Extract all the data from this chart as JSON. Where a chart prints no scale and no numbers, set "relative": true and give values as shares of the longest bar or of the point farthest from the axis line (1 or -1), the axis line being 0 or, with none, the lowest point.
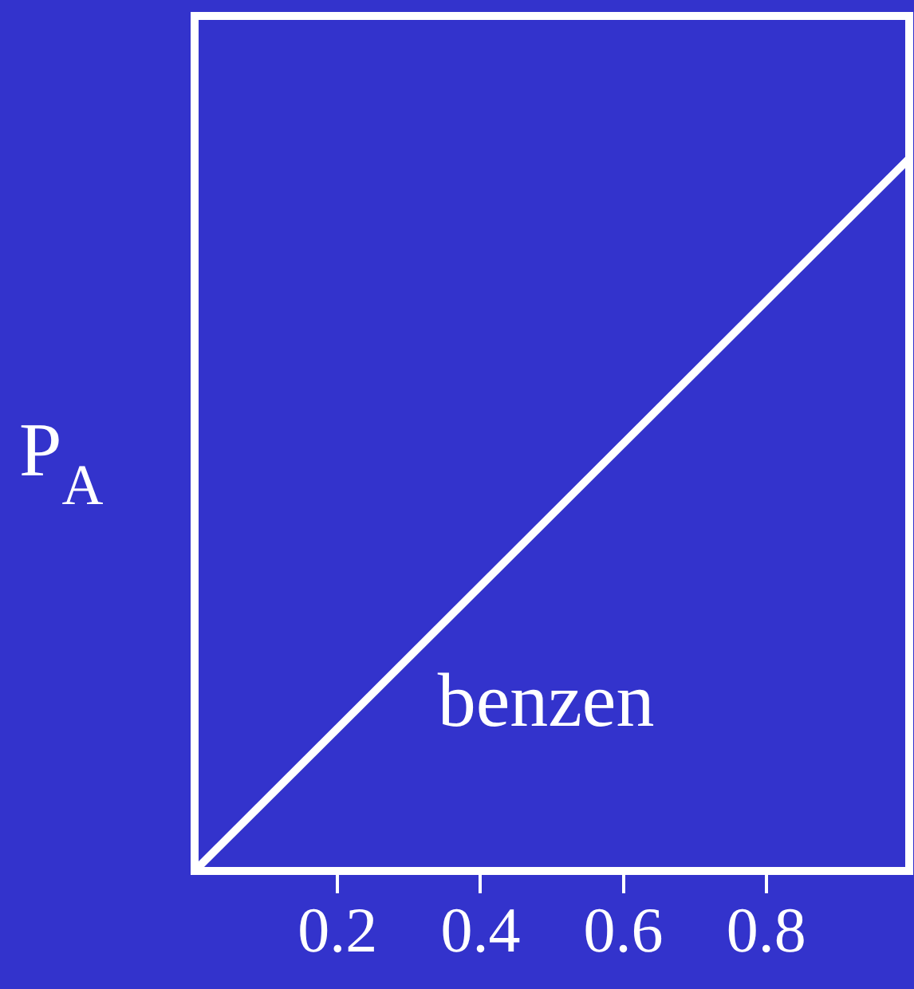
{
  "chart_data": {
    "type": "line",
    "relative": true,
    "ylabel": "P$_{A}$",
    "x": [
      0,
      1
    ],
    "series": [
      {
        "color": "#ffffff",
        "values": [
          0,
          1
        ]
      }
    ],
    "xlim": [
      0,
      1
    ],
    "xticks": [
      0.2,
      0.4,
      0.6,
      0.8
    ],
    "grid": false,
    "legend": false,
    "marker": "none",
    "line_style": "solid",
    "tick_labels": "x",
    "annotations": [
      "benzen"
    ]
  }
}
